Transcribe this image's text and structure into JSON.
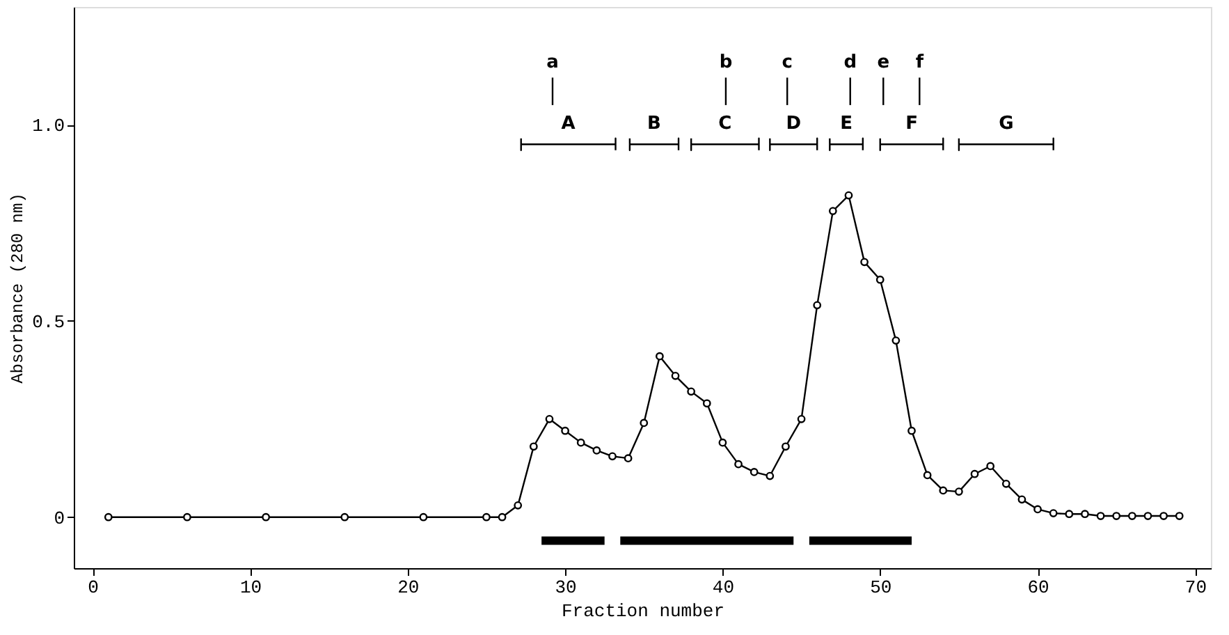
{
  "chart_data": {
    "type": "line",
    "xlabel": "Fraction number",
    "ylabel": "Absorbance (280 nm)",
    "xlim": [
      -1.2,
      71
    ],
    "ylim": [
      -0.13,
      1.3
    ],
    "xticks": [
      0,
      10,
      20,
      30,
      40,
      50,
      60,
      70
    ],
    "yticks": [
      0,
      {
        "value": 0.5,
        "label": "0.5"
      },
      {
        "value": 1.0,
        "label": "1.0"
      }
    ],
    "grid": false,
    "marker": "circle",
    "line_style": "solid",
    "series": [
      {
        "color": "#000000",
        "x": [
          1,
          6,
          11,
          16,
          21,
          25,
          26,
          27,
          28,
          29,
          30,
          31,
          32,
          33,
          34,
          35,
          36,
          37,
          38,
          39,
          40,
          41,
          42,
          43,
          44,
          45,
          46,
          47,
          48,
          49,
          50,
          51,
          52,
          53,
          54,
          55,
          56,
          57,
          58,
          59,
          60,
          61,
          62,
          63,
          64,
          65,
          66,
          67,
          68,
          69
        ],
        "values": [
          0,
          0,
          0,
          0,
          0,
          0,
          0,
          0.03,
          0.18,
          0.25,
          0.22,
          0.19,
          0.17,
          0.155,
          0.15,
          0.24,
          0.41,
          0.36,
          0.32,
          0.29,
          0.19,
          0.135,
          0.115,
          0.105,
          0.18,
          0.25,
          0.54,
          0.78,
          0.82,
          0.65,
          0.605,
          0.45,
          0.22,
          0.107,
          0.068,
          0.065,
          0.11,
          0.13,
          0.085,
          0.045,
          0.02,
          0.01,
          0.008,
          0.008,
          0.003,
          0.003,
          0.003,
          0.003,
          0.003,
          0.003
        ]
      },
      {
        "color": "#000000",
        "marker": "none",
        "x": [
          28.5,
          32.5
        ],
        "values": [
          -0.06,
          -0.06
        ]
      },
      {
        "color": "#000000",
        "marker": "none",
        "x": [
          33.5,
          44.5
        ],
        "values": [
          -0.06,
          -0.06
        ]
      },
      {
        "color": "#000000",
        "marker": "none",
        "x": [
          45.5,
          52
        ],
        "values": [
          -0.06,
          -0.06
        ]
      },
      {
        "name": "A",
        "color": "#000000",
        "marker": "none",
        "x": [
          27.2,
          27.2,
          27.2,
          33.2,
          33.2,
          33.2
        ],
        "values": [
          0.965,
          0.935,
          0.95,
          0.95,
          0.965,
          0.935
        ]
      },
      {
        "name": "B",
        "color": "#000000",
        "marker": "none",
        "x": [
          34.1,
          34.1,
          34.1,
          37.2,
          37.2,
          37.2
        ],
        "values": [
          0.965,
          0.935,
          0.95,
          0.95,
          0.965,
          0.935
        ]
      },
      {
        "name": "C",
        "color": "#000000",
        "marker": "none",
        "x": [
          38.0,
          38.0,
          38.0,
          42.3,
          42.3,
          42.3
        ],
        "values": [
          0.965,
          0.935,
          0.95,
          0.95,
          0.965,
          0.935
        ]
      },
      {
        "name": "D",
        "color": "#000000",
        "marker": "none",
        "x": [
          43.0,
          43.0,
          43.0,
          46.0,
          46.0,
          46.0
        ],
        "values": [
          0.965,
          0.935,
          0.95,
          0.95,
          0.965,
          0.935
        ]
      },
      {
        "name": "E",
        "color": "#000000",
        "marker": "none",
        "x": [
          46.8,
          46.8,
          46.8,
          48.9,
          48.9,
          48.9
        ],
        "values": [
          0.965,
          0.935,
          0.95,
          0.95,
          0.965,
          0.935
        ]
      },
      {
        "name": "F",
        "color": "#000000",
        "marker": "none",
        "x": [
          50.0,
          50.0,
          50.0,
          54.0,
          54.0,
          54.0
        ],
        "values": [
          0.965,
          0.935,
          0.95,
          0.95,
          0.965,
          0.935
        ]
      },
      {
        "name": "G",
        "color": "#000000",
        "marker": "none",
        "x": [
          55.0,
          55.0,
          55.0,
          61.0,
          61.0,
          61.0
        ],
        "values": [
          0.965,
          0.935,
          0.95,
          0.95,
          0.965,
          0.935
        ]
      },
      {
        "name": "a",
        "color": "#000000",
        "marker": "none",
        "x": [
          29.2,
          29.2
        ],
        "values": [
          1.12,
          1.05
        ]
      },
      {
        "name": "b",
        "color": "#000000",
        "marker": "none",
        "x": [
          40.2,
          40.2
        ],
        "values": [
          1.12,
          1.05
        ]
      },
      {
        "name": "c",
        "color": "#000000",
        "marker": "none",
        "x": [
          44.1,
          44.1
        ],
        "values": [
          1.12,
          1.05
        ]
      },
      {
        "name": "d",
        "color": "#000000",
        "marker": "none",
        "x": [
          48.1,
          48.1
        ],
        "values": [
          1.12,
          1.05
        ]
      },
      {
        "name": "e",
        "color": "#000000",
        "marker": "none",
        "x": [
          50.2,
          50.2
        ],
        "values": [
          1.12,
          1.05
        ]
      },
      {
        "name": "f",
        "color": "#000000",
        "marker": "none",
        "x": [
          52.5,
          52.5
        ],
        "values": [
          1.12,
          1.05
        ]
      }
    ]
  }
}
